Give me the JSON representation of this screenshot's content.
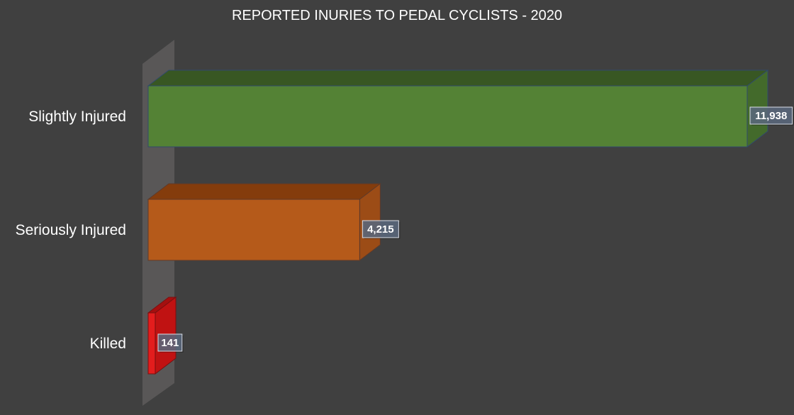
{
  "chart_data": {
    "type": "bar",
    "orientation": "horizontal",
    "three_d": true,
    "title": "REPORTED INURIES TO PEDAL CYCLISTS - 2020",
    "xlabel": "",
    "ylabel": "",
    "categories": [
      "Slightly Injured",
      "Seriously Injured",
      "Killed"
    ],
    "values": [
      11938,
      4215,
      141
    ],
    "data_labels": [
      "11,938",
      "4,215",
      "141"
    ],
    "xlim": [
      0,
      11938
    ],
    "grid": false,
    "legend": "none",
    "colors": {
      "background": "#404040",
      "wall": "#595757",
      "bars": [
        {
          "front": "#548235",
          "top": "#385723",
          "side": "#436a2b",
          "edge": "#2f4a6b"
        },
        {
          "front": "#b55a1a",
          "top": "#843c0c",
          "side": "#9c4c16",
          "edge": "#5e3a2a"
        },
        {
          "front": "#e31d1d",
          "top": "#a50f0f",
          "side": "#c01212",
          "edge": "#7a1010"
        }
      ],
      "label_box_fill": "#5d6b80",
      "label_box_stroke": "#d8dde6",
      "text": "#ffffff"
    }
  }
}
